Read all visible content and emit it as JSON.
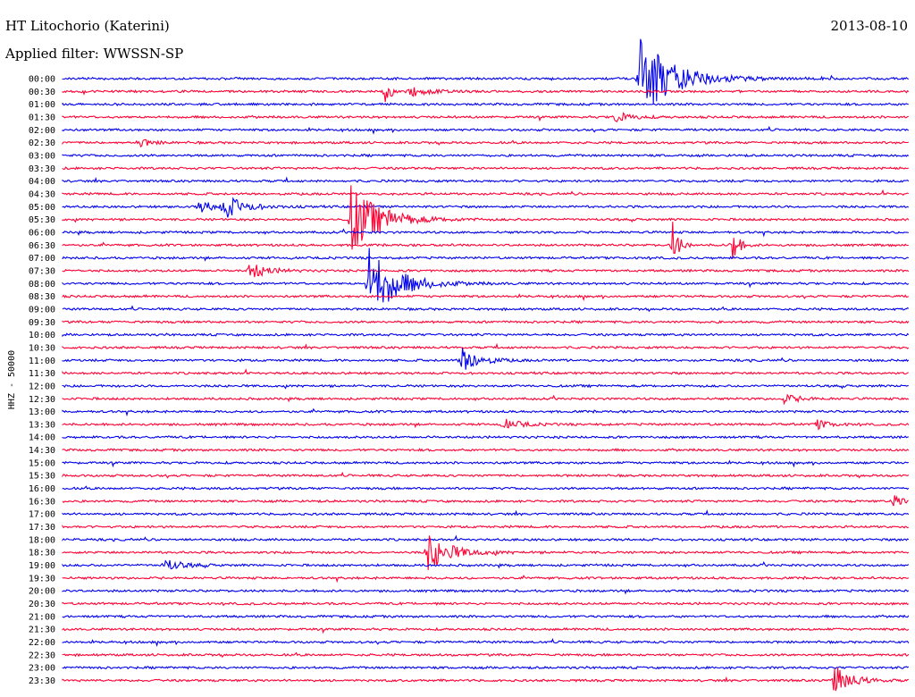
{
  "header": {
    "title": "HT Litochorio (Katerini)",
    "date": "2013-08-10",
    "filter": "Applied filter: WWSSN-SP"
  },
  "chart_data": {
    "type": "line",
    "ylabel": "HHZ - 50000",
    "colors": [
      "#0000ee",
      "#ff0033"
    ],
    "rows": [
      "00:00",
      "00:30",
      "01:00",
      "01:30",
      "02:00",
      "02:30",
      "03:00",
      "03:30",
      "04:00",
      "04:30",
      "05:00",
      "05:30",
      "06:00",
      "06:30",
      "07:00",
      "07:30",
      "08:00",
      "08:30",
      "09:00",
      "09:30",
      "10:00",
      "10:30",
      "11:00",
      "11:30",
      "12:00",
      "12:30",
      "13:00",
      "13:30",
      "14:00",
      "14:30",
      "15:00",
      "15:30",
      "16:00",
      "16:30",
      "17:00",
      "17:30",
      "18:00",
      "18:30",
      "19:00",
      "19:30",
      "20:00",
      "20:30",
      "21:00",
      "21:30",
      "22:00",
      "22:30",
      "23:00",
      "23:30"
    ],
    "events": [
      {
        "row": 0,
        "t": 0.68,
        "amp": 48,
        "dur": 0.06
      },
      {
        "row": 1,
        "t": 0.38,
        "amp": 16,
        "dur": 0.01
      },
      {
        "row": 1,
        "t": 0.41,
        "amp": 6,
        "dur": 0.03
      },
      {
        "row": 3,
        "t": 0.65,
        "amp": 6,
        "dur": 0.03
      },
      {
        "row": 5,
        "t": 0.09,
        "amp": 5,
        "dur": 0.02
      },
      {
        "row": 10,
        "t": 0.16,
        "amp": 6,
        "dur": 0.05
      },
      {
        "row": 10,
        "t": 0.19,
        "amp": 12,
        "dur": 0.03
      },
      {
        "row": 11,
        "t": 0.34,
        "amp": 40,
        "dur": 0.05
      },
      {
        "row": 13,
        "t": 0.72,
        "amp": 30,
        "dur": 0.01
      },
      {
        "row": 13,
        "t": 0.79,
        "amp": 28,
        "dur": 0.01
      },
      {
        "row": 15,
        "t": 0.22,
        "amp": 10,
        "dur": 0.03
      },
      {
        "row": 16,
        "t": 0.36,
        "amp": 42,
        "dur": 0.05
      },
      {
        "row": 22,
        "t": 0.47,
        "amp": 16,
        "dur": 0.03
      },
      {
        "row": 25,
        "t": 0.85,
        "amp": 5,
        "dur": 0.03
      },
      {
        "row": 27,
        "t": 0.52,
        "amp": 6,
        "dur": 0.03
      },
      {
        "row": 27,
        "t": 0.89,
        "amp": 6,
        "dur": 0.02
      },
      {
        "row": 33,
        "t": 0.98,
        "amp": 8,
        "dur": 0.02
      },
      {
        "row": 37,
        "t": 0.43,
        "amp": 22,
        "dur": 0.04
      },
      {
        "row": 38,
        "t": 0.12,
        "amp": 7,
        "dur": 0.03
      },
      {
        "row": 47,
        "t": 0.91,
        "amp": 18,
        "dur": 0.03
      }
    ]
  }
}
